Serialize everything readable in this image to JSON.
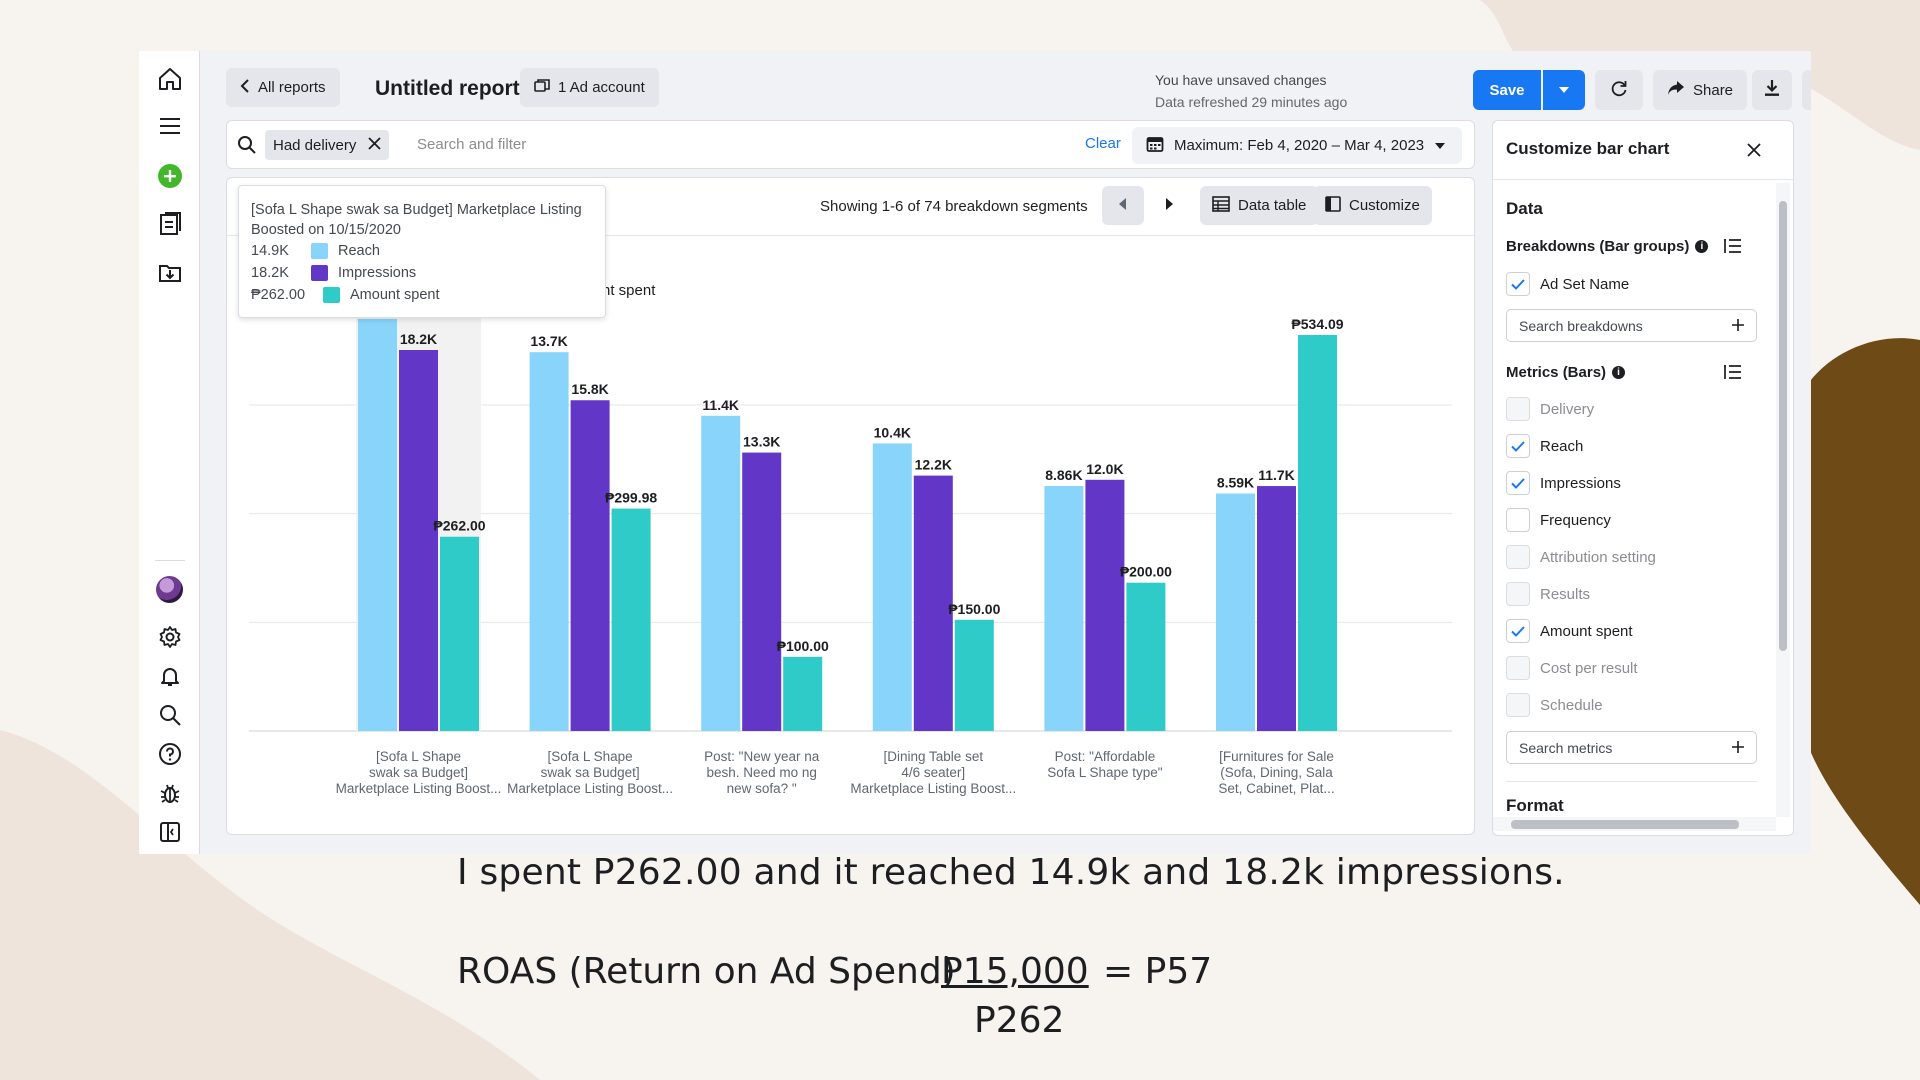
{
  "colors": {
    "reach": "#88d4fa",
    "impressions": "#6236c7",
    "amount_spent": "#2ecbc9",
    "primary": "#1877f2",
    "background": "#f7f3ee",
    "blob_beige": "#efe4dc",
    "blob_brown": "#6e4a17"
  },
  "rail": {
    "icons": [
      "home-icon",
      "menu-icon",
      "create-plus-icon",
      "reports-icon",
      "export-icon",
      "avatar",
      "settings-gear-icon",
      "notifications-bell-icon",
      "search-icon",
      "help-icon",
      "bug-report-icon",
      "sidebar-toggle-icon"
    ]
  },
  "topbar": {
    "all_reports": "All reports",
    "title": "Untitled report",
    "ad_account": "1 Ad account",
    "unsaved": "You have unsaved changes",
    "refreshed": "Data refreshed 29 minutes ago",
    "save": "Save",
    "share": "Share"
  },
  "filter": {
    "chip": "Had delivery",
    "search_placeholder": "Search and filter",
    "clear": "Clear",
    "date_range": "Maximum: Feb 4, 2020 – Mar 4, 2023"
  },
  "toolbar": {
    "showing": "Showing 1-6 of 74 breakdown segments",
    "data_table": "Data table",
    "customize": "Customize"
  },
  "legend_fragment": "nt spent",
  "tooltip": {
    "title": "[Sofa L Shape swak sa Budget] Marketplace Listing Boosted on 10/15/2020",
    "rows": [
      {
        "value": "14.9K",
        "label": "Reach",
        "color": "#88d4fa"
      },
      {
        "value": "18.2K",
        "label": "Impressions",
        "color": "#6236c7"
      },
      {
        "value": "₱262.00",
        "label": "Amount spent",
        "color": "#2ecbc9"
      }
    ]
  },
  "chart_data": {
    "type": "bar",
    "categories": [
      [
        "[Sofa L Shape",
        "swak sa Budget]",
        "Marketplace Listing Boost..."
      ],
      [
        "[Sofa L Shape",
        "swak sa Budget]",
        "Marketplace Listing Boost..."
      ],
      [
        "Post: \"New year na",
        "besh. Need mo ng",
        "new sofa? \""
      ],
      [
        "[Dining Table set",
        "4/6 seater]",
        "Marketplace Listing Boost..."
      ],
      [
        "Post: \"Affordable",
        "Sofa L Shape type\""
      ],
      [
        "[Furnitures for Sale",
        "(Sofa, Dining, Sala",
        "Set, Cabinet, Plat..."
      ]
    ],
    "series": [
      {
        "name": "Reach",
        "values": [
          14900,
          13700,
          11400,
          10400,
          8860,
          8590
        ],
        "labels": [
          "14.9K",
          "13.7K",
          "11.4K",
          "10.4K",
          "8.86K",
          "8.59K"
        ]
      },
      {
        "name": "Impressions",
        "values": [
          18200,
          15800,
          13300,
          12200,
          12000,
          11700
        ],
        "labels": [
          "18.2K",
          "15.8K",
          "13.3K",
          "12.2K",
          "12.0K",
          "11.7K"
        ]
      },
      {
        "name": "Amount spent",
        "values": [
          262.0,
          299.98,
          100.0,
          150.0,
          200.0,
          534.09
        ],
        "labels": [
          "₱262.00",
          "₱299.98",
          "₱100.00",
          "₱150.00",
          "₱200.00",
          "₱534.09"
        ]
      }
    ],
    "grid": true,
    "highlighted_category_index": 0
  },
  "sidebar": {
    "title": "Customize bar chart",
    "data_heading": "Data",
    "breakdowns_heading": "Breakdowns (Bar groups)",
    "breakdowns": [
      {
        "label": "Ad Set Name",
        "checked": true
      }
    ],
    "search_breakdowns": "Search breakdowns",
    "metrics_heading": "Metrics (Bars)",
    "metrics": [
      {
        "label": "Delivery",
        "checked": false,
        "disabled": true
      },
      {
        "label": "Reach",
        "checked": true,
        "disabled": false
      },
      {
        "label": "Impressions",
        "checked": true,
        "disabled": false
      },
      {
        "label": "Frequency",
        "checked": false,
        "disabled": false
      },
      {
        "label": "Attribution setting",
        "checked": false,
        "disabled": true
      },
      {
        "label": "Results",
        "checked": false,
        "disabled": true
      },
      {
        "label": "Amount spent",
        "checked": true,
        "disabled": false
      },
      {
        "label": "Cost per result",
        "checked": false,
        "disabled": true
      },
      {
        "label": "Schedule",
        "checked": false,
        "disabled": true
      }
    ],
    "search_metrics": "Search metrics",
    "format_heading": "Format"
  },
  "annotation": {
    "caption": "I spent P262.00 and it reached 14.9k and 18.2k impressions.",
    "roas_label": "ROAS (Return on Ad Spend)",
    "roas_numerator": "P15,000",
    "roas_result": "= P57",
    "roas_denominator": "P262"
  }
}
